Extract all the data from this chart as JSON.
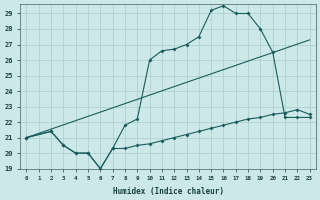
{
  "xlabel": "Humidex (Indice chaleur)",
  "background_color": "#cce8e8",
  "grid_color": "#aacccc",
  "line_color": "#1a5c5c",
  "xlim": [
    -0.5,
    23.5
  ],
  "ylim": [
    19,
    29.6
  ],
  "yticks": [
    19,
    20,
    21,
    22,
    23,
    24,
    25,
    26,
    27,
    28,
    29
  ],
  "xticks": [
    0,
    1,
    2,
    3,
    4,
    5,
    6,
    7,
    8,
    9,
    10,
    11,
    12,
    13,
    14,
    15,
    16,
    17,
    18,
    19,
    20,
    21,
    22,
    23
  ],
  "line1_x": [
    0,
    2,
    3,
    4,
    5,
    6,
    7,
    8,
    9,
    10,
    11,
    12,
    13,
    14,
    15,
    16,
    17,
    18,
    19,
    20,
    21,
    22,
    23
  ],
  "line1_y": [
    21.0,
    21.4,
    20.5,
    20.0,
    20.0,
    19.0,
    20.3,
    20.3,
    20.5,
    20.6,
    20.8,
    21.0,
    21.2,
    21.4,
    21.6,
    21.8,
    22.0,
    22.2,
    22.3,
    22.5,
    22.6,
    22.8,
    22.5
  ],
  "line2_x": [
    0,
    2,
    3,
    4,
    5,
    6,
    7,
    8,
    9,
    10,
    11,
    12,
    13,
    14,
    15,
    16,
    17,
    18,
    19,
    20,
    21,
    22,
    23
  ],
  "line2_y": [
    21.0,
    21.4,
    20.5,
    20.0,
    20.0,
    19.0,
    20.3,
    21.8,
    22.2,
    26.0,
    26.6,
    26.7,
    27.0,
    27.5,
    29.2,
    29.5,
    29.0,
    29.0,
    28.0,
    26.5,
    22.3,
    22.3,
    22.3
  ],
  "line3_x": [
    0,
    23
  ],
  "line3_y": [
    21.0,
    27.3
  ]
}
